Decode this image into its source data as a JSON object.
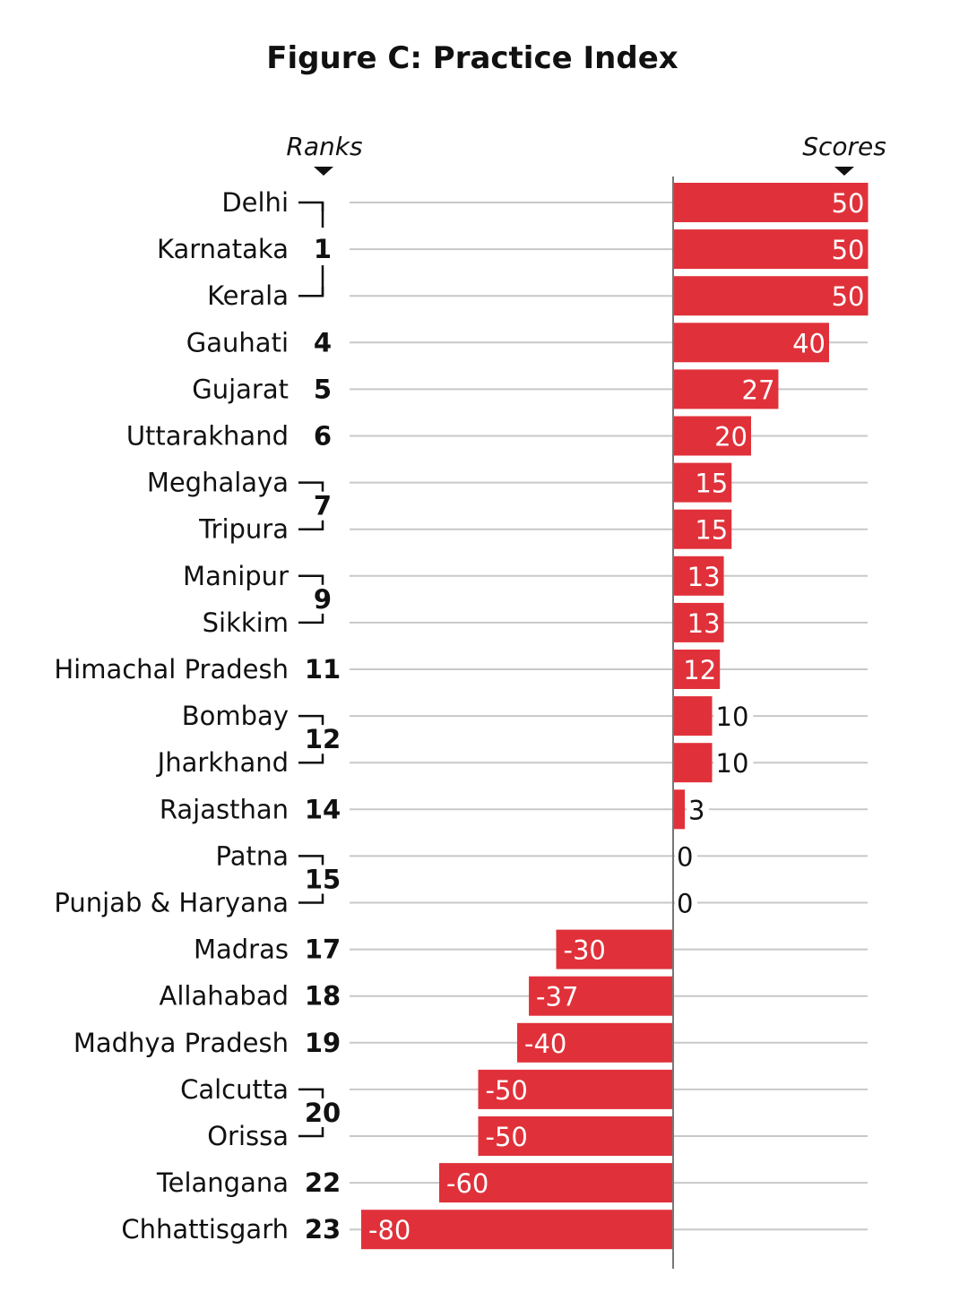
{
  "chart_data": {
    "type": "bar",
    "orientation": "horizontal",
    "title": "Figure C: Practice Index",
    "rank_header": "Ranks",
    "score_header": "Scores",
    "xlim": [
      -80,
      50
    ],
    "categories": [
      "Delhi",
      "Karnataka",
      "Kerala",
      "Gauhati",
      "Gujarat",
      "Uttarakhand",
      "Meghalaya",
      "Tripura",
      "Manipur",
      "Sikkim",
      "Himachal Pradesh",
      "Bombay",
      "Jharkhand",
      "Rajasthan",
      "Patna",
      "Punjab & Haryana",
      "Madras",
      "Allahabad",
      "Madhya Pradesh",
      "Calcutta",
      "Orissa",
      "Telangana",
      "Chhattisgarh"
    ],
    "values": [
      50,
      50,
      50,
      40,
      27,
      20,
      15,
      15,
      13,
      13,
      12,
      10,
      10,
      3,
      0,
      0,
      -30,
      -37,
      -40,
      -50,
      -50,
      -60,
      -80
    ],
    "value_labels": [
      "50",
      "50",
      "50",
      "40",
      "27",
      "20",
      "15",
      "15",
      "13",
      "13",
      "12",
      "10",
      "10",
      "3",
      "0",
      "0",
      "-30",
      "-37",
      "-40",
      "-50",
      "-50",
      "-60",
      "-80"
    ],
    "rank_groups": [
      {
        "rank": "1",
        "start": 0,
        "end": 2
      },
      {
        "rank": "4",
        "start": 3,
        "end": 3
      },
      {
        "rank": "5",
        "start": 4,
        "end": 4
      },
      {
        "rank": "6",
        "start": 5,
        "end": 5
      },
      {
        "rank": "7",
        "start": 6,
        "end": 7
      },
      {
        "rank": "9",
        "start": 8,
        "end": 9
      },
      {
        "rank": "11",
        "start": 10,
        "end": 10
      },
      {
        "rank": "12",
        "start": 11,
        "end": 12
      },
      {
        "rank": "14",
        "start": 13,
        "end": 13
      },
      {
        "rank": "15",
        "start": 14,
        "end": 15
      },
      {
        "rank": "17",
        "start": 16,
        "end": 16
      },
      {
        "rank": "18",
        "start": 17,
        "end": 17
      },
      {
        "rank": "19",
        "start": 18,
        "end": 18
      },
      {
        "rank": "20",
        "start": 19,
        "end": 20
      },
      {
        "rank": "22",
        "start": 21,
        "end": 21
      },
      {
        "rank": "23",
        "start": 22,
        "end": 22
      }
    ],
    "colors": {
      "bar": "#e0313a",
      "grid": "#c8c8c8",
      "axis": "#777777",
      "text": "#111111"
    }
  }
}
